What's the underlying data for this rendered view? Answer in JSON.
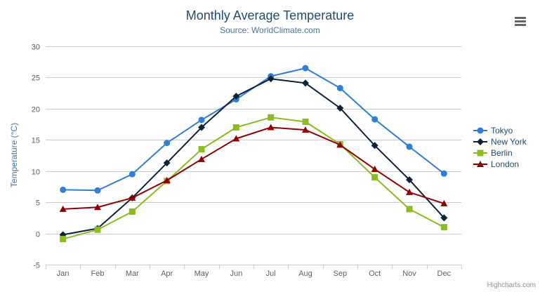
{
  "header": {
    "title": "Monthly Average Temperature",
    "subtitle": "Source: WorldClimate.com"
  },
  "icons": {
    "menu": "hamburger-menu-icon"
  },
  "credits": "Highcharts.com",
  "ui_colors": {
    "title": "#274b6d",
    "subtitle": "#4d759e",
    "axis_title": "#4d759e",
    "axis_labels": "#606060",
    "axis_line": "#c0d0e0",
    "grid": "#cccccc",
    "legend_text": "#274b6d",
    "credits": "#909090"
  },
  "chart_data": {
    "type": "line",
    "title": "Monthly Average Temperature",
    "subtitle": "Source: WorldClimate.com",
    "ylabel": "Temperature (°C)",
    "xlabel": "",
    "ylim": [
      -5,
      30
    ],
    "yticks": [
      "-5",
      "0",
      "5",
      "10",
      "15",
      "20",
      "25",
      "30"
    ],
    "grid": true,
    "legend_position": "right",
    "categories": [
      "Jan",
      "Feb",
      "Mar",
      "Apr",
      "May",
      "Jun",
      "Jul",
      "Aug",
      "Sep",
      "Oct",
      "Nov",
      "Dec"
    ],
    "series": [
      {
        "name": "Tokyo",
        "color": "#2f7ed8",
        "marker": "circle",
        "values": [
          7.0,
          6.9,
          9.5,
          14.5,
          18.2,
          21.5,
          25.2,
          26.5,
          23.3,
          18.3,
          13.9,
          9.6
        ]
      },
      {
        "name": "New York",
        "color": "#0d233a",
        "marker": "diamond",
        "values": [
          -0.2,
          0.8,
          5.7,
          11.3,
          17.0,
          22.0,
          24.8,
          24.1,
          20.1,
          14.1,
          8.6,
          2.5
        ]
      },
      {
        "name": "Berlin",
        "color": "#8bbc21",
        "marker": "square",
        "values": [
          -0.9,
          0.6,
          3.5,
          8.4,
          13.5,
          17.0,
          18.6,
          17.9,
          14.3,
          9.0,
          3.9,
          1.0
        ]
      },
      {
        "name": "London",
        "color": "#910000",
        "marker": "triangle",
        "values": [
          3.9,
          4.2,
          5.7,
          8.5,
          11.9,
          15.2,
          17.0,
          16.6,
          14.2,
          10.3,
          6.6,
          4.8
        ]
      }
    ]
  }
}
